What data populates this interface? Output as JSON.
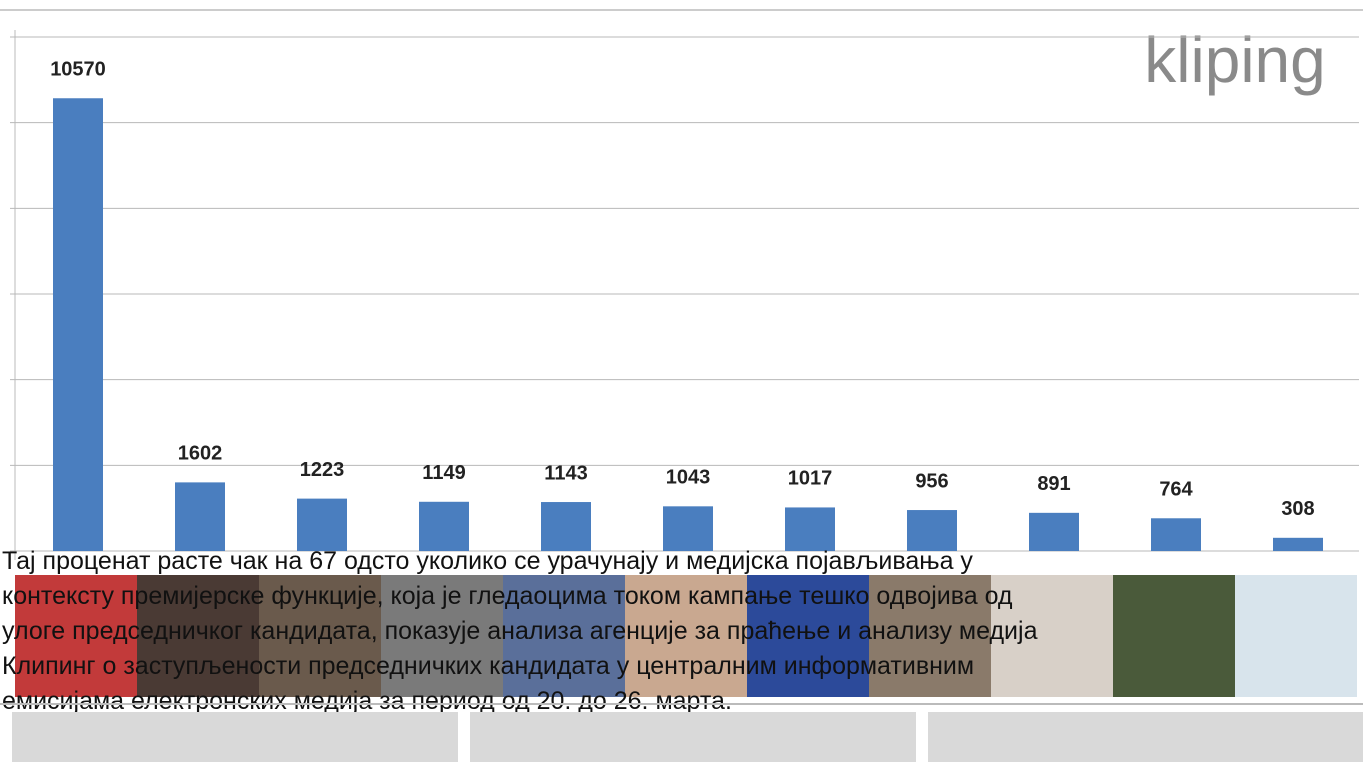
{
  "chart_data": {
    "type": "bar",
    "logo": "kliping",
    "categories": [
      null,
      null,
      null,
      null,
      null,
      null,
      null,
      null,
      null,
      null,
      null
    ],
    "values": [
      10570,
      1602,
      1223,
      1149,
      1143,
      1043,
      1017,
      956,
      891,
      764,
      308
    ],
    "color": "#4a7ebf",
    "ylim": [
      0,
      12000
    ],
    "yticks": [
      0,
      2000,
      4000,
      6000,
      8000,
      10000,
      12000
    ],
    "grid": true,
    "caption": [
      "Тај проценат расте чак на 67 одсто уколико се урачунају и медијска појављивања у",
      "контексту премијерске функције, која је гледаоцима током кампање тешко одвојива од",
      "улоге председничког кандидата, показује анализа агенције за праћење и анализу медија",
      "Клипинг о заступљености председничких кандидата у централним информативним",
      "емисијама електронских медија за период од 20. до 26. марта."
    ]
  }
}
